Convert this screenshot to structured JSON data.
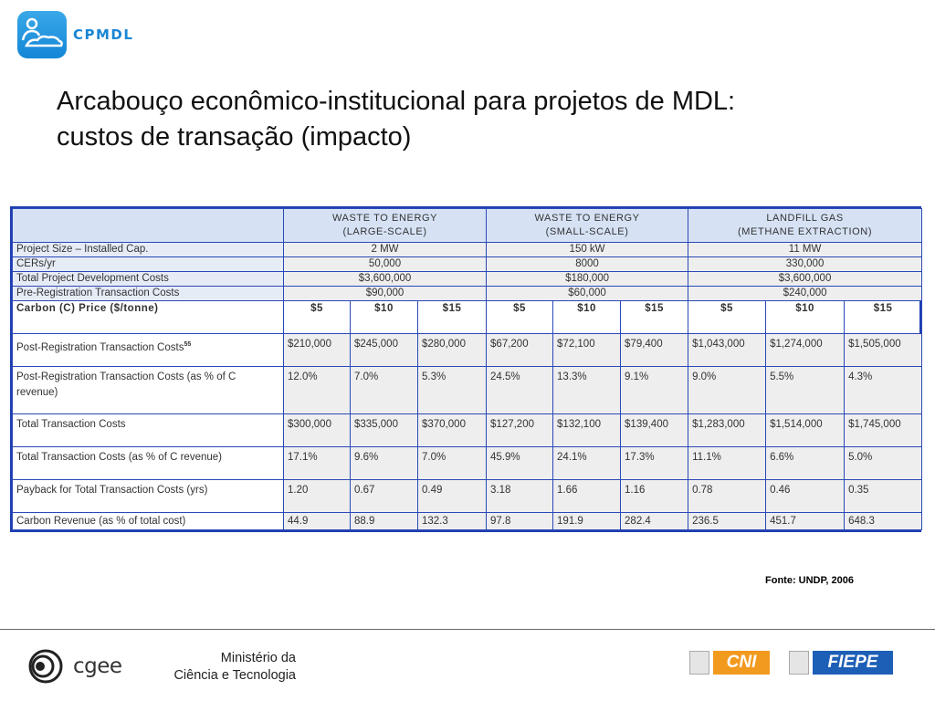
{
  "header": {
    "logo_text": "CPMDL",
    "title_line1": "Arcabouço econômico-institucional para projetos de MDL:",
    "title_line2": "custos de transação (impacto)"
  },
  "table": {
    "groups": [
      {
        "line1": "WASTE TO ENERGY",
        "line2": "(LARGE-SCALE)"
      },
      {
        "line1": "WASTE TO ENERGY",
        "line2": "(SMALL-SCALE)"
      },
      {
        "line1": "LANDFILL GAS",
        "line2": "(METHANE EXTRACTION)"
      }
    ],
    "spec_rows": [
      {
        "label": "Project Size – Installed Cap.",
        "values": [
          "2 MW",
          "150 kW",
          "11 MW"
        ]
      },
      {
        "label": "CERs/yr",
        "values": [
          "50,000",
          "8000",
          "330,000"
        ]
      },
      {
        "label": "Total Project Development Costs",
        "values": [
          "$3,600,000",
          "$180,000",
          "$3,600,000"
        ]
      },
      {
        "label": "Pre-Registration Transaction Costs",
        "values": [
          "$90,000",
          "$60,000",
          "$240,000"
        ]
      }
    ],
    "price_row": {
      "label": "Carbon (C) Price ($/tonne)",
      "values": [
        "$5",
        "$10",
        "$15",
        "$5",
        "$10",
        "$15",
        "$5",
        "$10",
        "$15"
      ]
    },
    "data_rows": [
      {
        "label": "Post-Registration Transaction Costs",
        "footnote": "55",
        "values": [
          "$210,000",
          "$245,000",
          "$280,000",
          "$67,200",
          "$72,100",
          "$79,400",
          "$1,043,000",
          "$1,274,000",
          "$1,505,000"
        ]
      },
      {
        "label": "Post-Registration Transaction Costs (as % of C revenue)",
        "footnote": "",
        "values": [
          "12.0%",
          "7.0%",
          "5.3%",
          "24.5%",
          "13.3%",
          "9.1%",
          "9.0%",
          "5.5%",
          "4.3%"
        ]
      },
      {
        "label": "Total Transaction Costs",
        "footnote": "",
        "values": [
          "$300,000",
          "$335,000",
          "$370,000",
          "$127,200",
          "$132,100",
          "$139,400",
          "$1,283,000",
          "$1,514,000",
          "$1,745,000"
        ]
      },
      {
        "label": "Total Transaction  Costs (as % of C revenue)",
        "footnote": "",
        "values": [
          "17.1%",
          "9.6%",
          "7.0%",
          "45.9%",
          "24.1%",
          "17.3%",
          "11.1%",
          "6.6%",
          "5.0%"
        ]
      },
      {
        "label": "Payback for Total Transaction Costs (yrs)",
        "footnote": "",
        "values": [
          "1.20",
          "0.67",
          "0.49",
          "3.18",
          "1.66",
          "1.16",
          "0.78",
          "0.46",
          "0.35"
        ]
      },
      {
        "label": "Carbon Revenue (as % of total cost)",
        "footnote": "",
        "values": [
          "44.9",
          "88.9",
          "132.3",
          "97.8",
          "191.9",
          "282.4",
          "236.5",
          "451.7",
          "648.3"
        ]
      }
    ]
  },
  "source": "Fonte: UNDP, 2006",
  "footer": {
    "cgee_text": "cgee",
    "ministry_line1": "Ministério da",
    "ministry_line2": "Ciência e Tecnologia",
    "cni_text": "CNI",
    "fiepe_text": "FIEPE"
  },
  "colors": {
    "border_blue": "#2a48b8",
    "header_bg": "#d6e2f4",
    "cell_bg": "#eeeeee",
    "logo_blue": "#1a86d4",
    "cni_orange": "#f29a1e",
    "fiepe_blue": "#1d5fb6"
  }
}
